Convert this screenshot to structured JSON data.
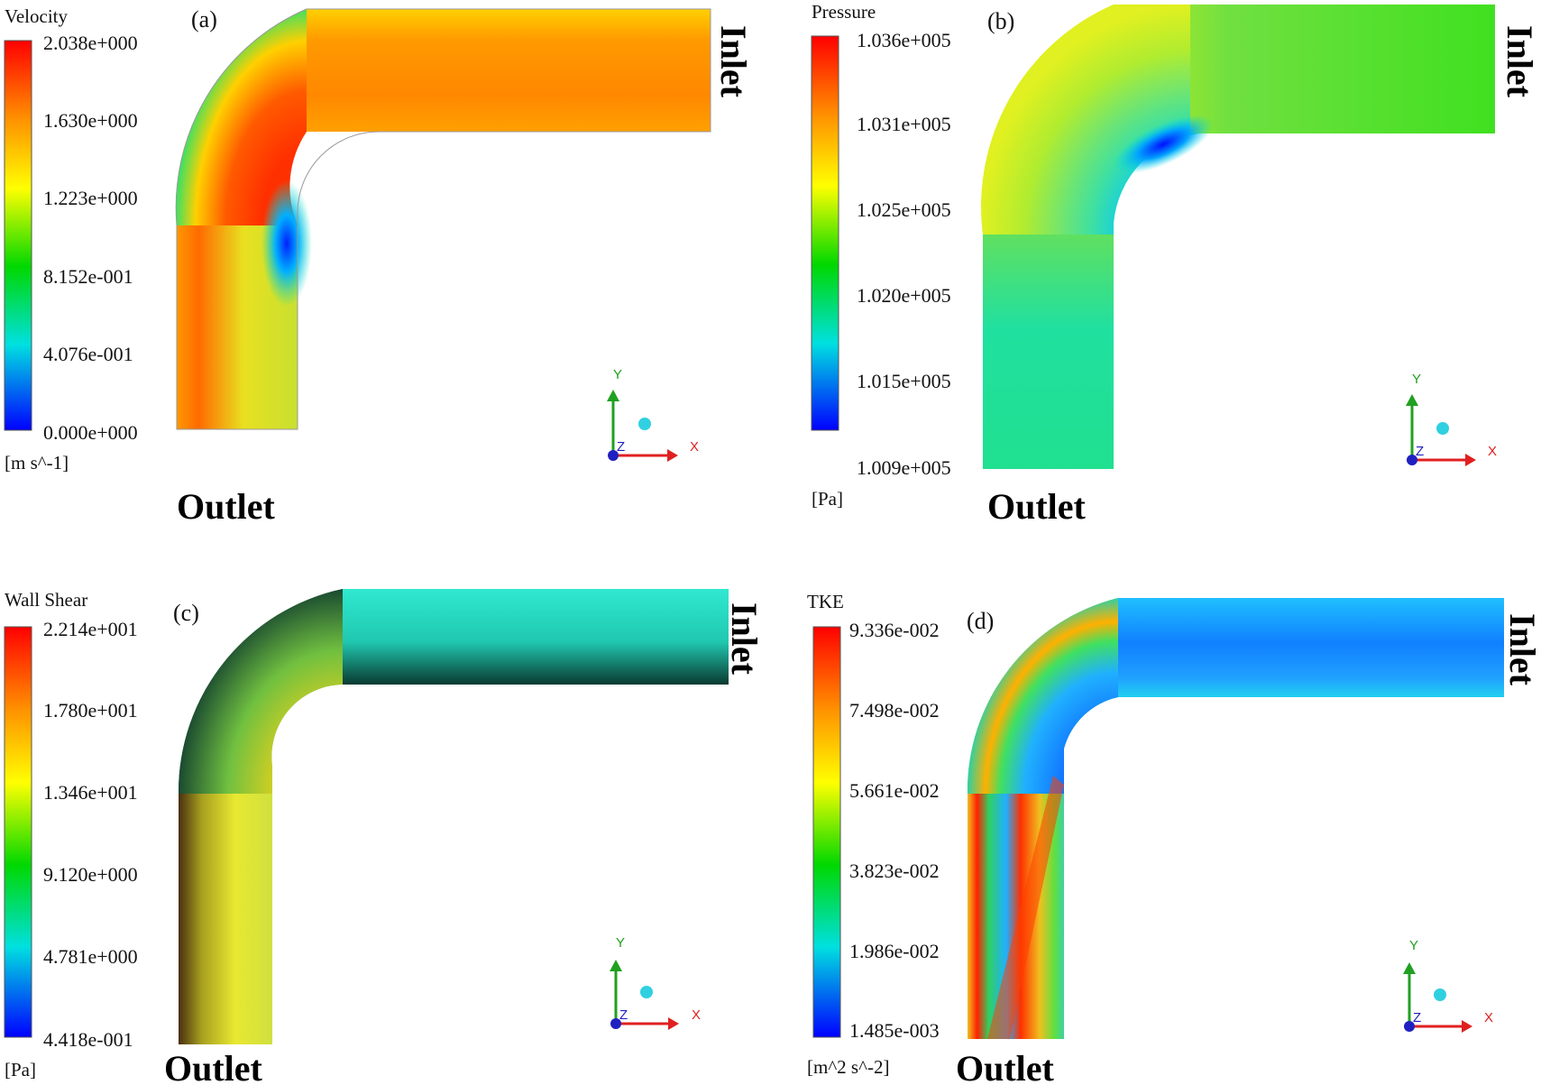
{
  "panels": [
    {
      "id": "a",
      "panel_label": "(a)",
      "variable": "Velocity",
      "unit": "[m s^-1]",
      "ticks": [
        "2.038e+000",
        "1.630e+000",
        "1.223e+000",
        "8.152e-001",
        "4.076e-001",
        "0.000e+000"
      ],
      "inlet_label": "Inlet",
      "outlet_label": "Outlet",
      "axis": {
        "y": "Y",
        "z": "Z",
        "x": "X"
      }
    },
    {
      "id": "b",
      "panel_label": "(b)",
      "variable": "Pressure",
      "unit": "[Pa]",
      "ticks": [
        "1.036e+005",
        "1.031e+005",
        "1.025e+005",
        "1.020e+005",
        "1.015e+005",
        "1.009e+005"
      ],
      "inlet_label": "Inlet",
      "outlet_label": "Outlet",
      "axis": {
        "y": "Y",
        "z": "Z",
        "x": "X"
      }
    },
    {
      "id": "c",
      "panel_label": "(c)",
      "variable": "Wall Shear",
      "unit": "[Pa]",
      "ticks": [
        "2.214e+001",
        "1.780e+001",
        "1.346e+001",
        "9.120e+000",
        "4.781e+000",
        "4.418e-001"
      ],
      "inlet_label": "Inlet",
      "outlet_label": "Outlet",
      "axis": {
        "y": "Y",
        "z": "Z",
        "x": "X"
      }
    },
    {
      "id": "d",
      "panel_label": "(d)",
      "variable": "TKE",
      "unit": "[m^2 s^-2]",
      "ticks": [
        "9.336e-002",
        "7.498e-002",
        "5.661e-002",
        "3.823e-002",
        "1.986e-002",
        "1.485e-003"
      ],
      "inlet_label": "Inlet",
      "outlet_label": "Outlet",
      "axis": {
        "y": "Y",
        "z": "Z",
        "x": "X"
      }
    }
  ],
  "colors": {
    "rainbow": [
      "#ff0000",
      "#ff8c00",
      "#ffff00",
      "#00e000",
      "#00e0e0",
      "#0000ff"
    ],
    "x_axis": "#e02020",
    "y_axis": "#20a020",
    "z_axis": "#2020c0"
  }
}
